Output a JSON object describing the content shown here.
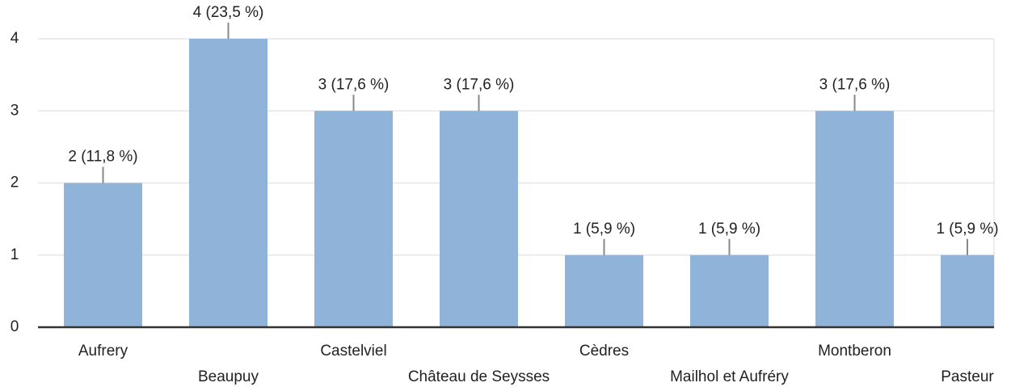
{
  "chart_data": {
    "type": "bar",
    "categories": [
      "Aufrery",
      "Beaupuy",
      "Castelviel",
      "Château de Seysses",
      "Cèdres",
      "Mailhol et Aufréry",
      "Montberon",
      "Pasteur"
    ],
    "values": [
      2,
      4,
      3,
      3,
      1,
      1,
      3,
      1
    ],
    "value_labels": [
      "2 (11,8 %)",
      "4 (23,5 %)",
      "3 (17,6 %)",
      "3 (17,6 %)",
      "1 (5,9 %)",
      "1 (5,9 %)",
      "3 (17,6 %)",
      "1 (5,9 %)"
    ],
    "color": "#8fb3d9",
    "ylim": [
      0,
      4
    ],
    "yticks": [
      0,
      1,
      2,
      3,
      4
    ],
    "grid": true
  }
}
